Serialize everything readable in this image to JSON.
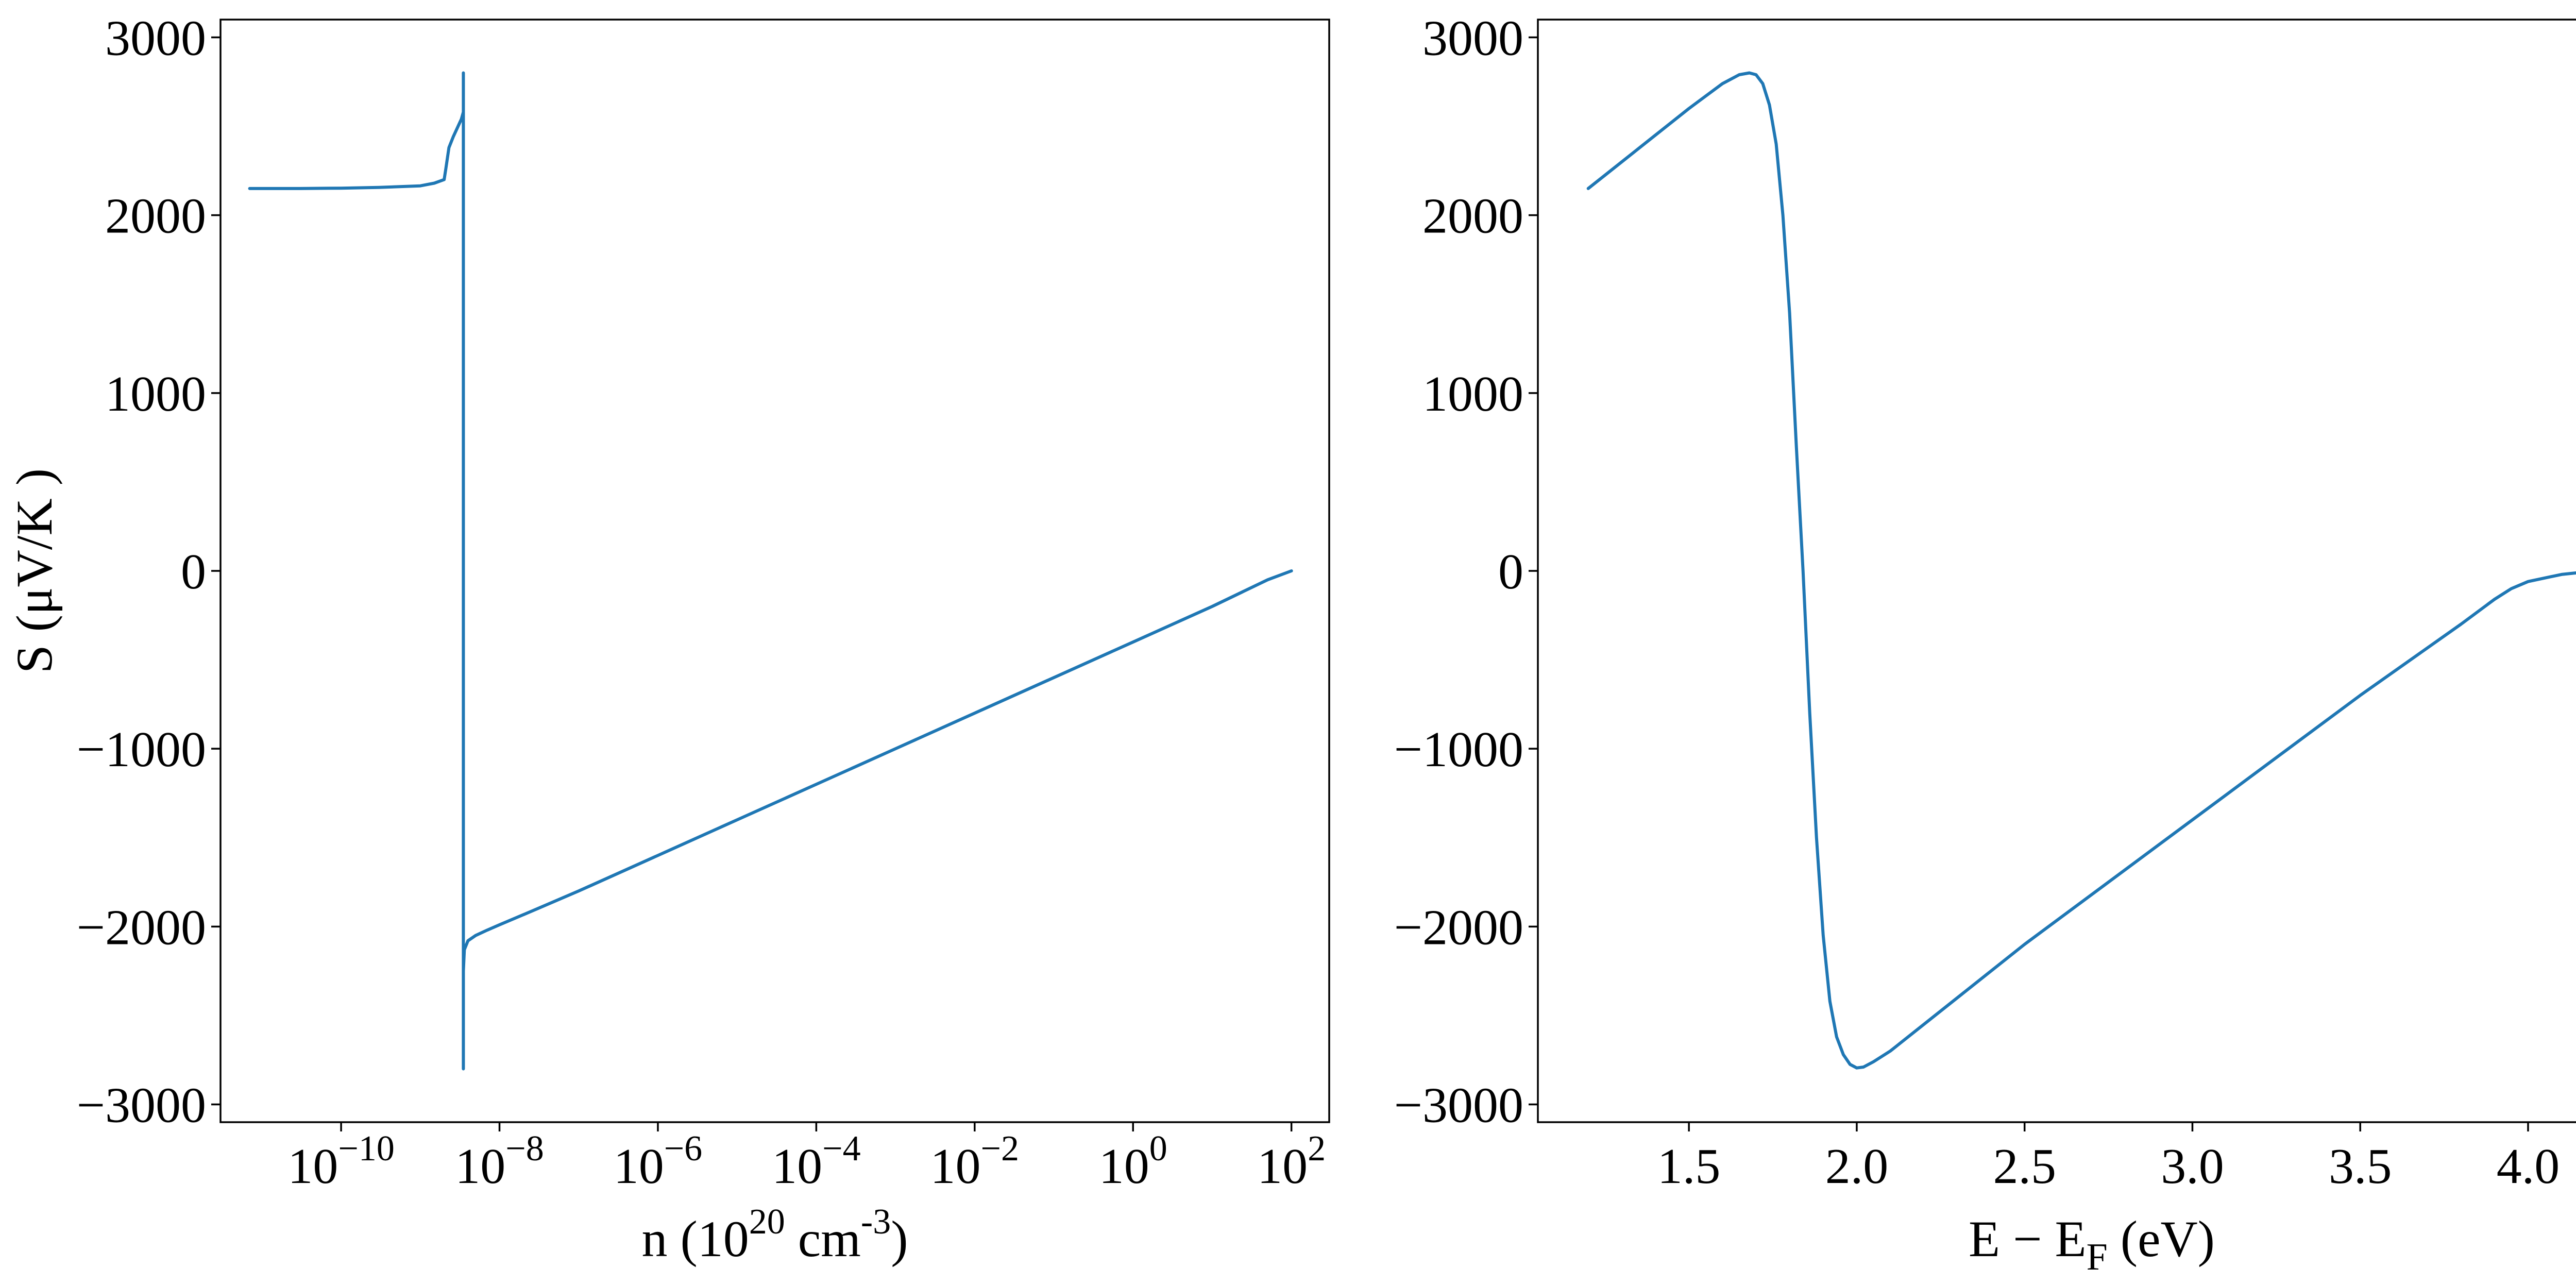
{
  "chart_data": [
    {
      "type": "line",
      "xscale": "log",
      "xlabel_parts": [
        "n (10",
        "20",
        " cm",
        "-3",
        ")"
      ],
      "ylabel": "S (μV/K )",
      "xlim": [
        3e-12,
        300
      ],
      "ylim": [
        -3100,
        3100
      ],
      "xticks": [
        1e-10,
        1e-08,
        1e-06,
        0.0001,
        0.01,
        1,
        100
      ],
      "xtick_labels": [
        {
          "base": "10",
          "exp": "−10"
        },
        {
          "base": "10",
          "exp": "−8"
        },
        {
          "base": "10",
          "exp": "−6"
        },
        {
          "base": "10",
          "exp": "−4"
        },
        {
          "base": "10",
          "exp": "−2"
        },
        {
          "base": "10",
          "exp": "0"
        },
        {
          "base": "10",
          "exp": "2"
        }
      ],
      "yticks": [
        -3000,
        -2000,
        -1000,
        0,
        1000,
        2000,
        3000
      ],
      "ytick_labels": [
        "−3000",
        "−2000",
        "−1000",
        "0",
        "1000",
        "2000",
        "3000"
      ],
      "color": "#1f77b4",
      "x": [
        7e-12,
        1e-11,
        3e-11,
        1e-10,
        3e-10,
        1e-09,
        1.5e-09,
        2e-09,
        2.1e-09,
        2.3e-09,
        2.6e-09,
        3e-09,
        3.3e-09,
        3.5e-09,
        3.5e-09,
        3.5e-09,
        3.5e-09,
        3.5e-09,
        3.6e-09,
        4e-09,
        5e-09,
        7e-09,
        1e-08,
        3e-08,
        1e-07,
        1e-06,
        1e-05,
        0.0001,
        0.001,
        0.01,
        0.1,
        1,
        10,
        50,
        100
      ],
      "y": [
        2150,
        2150,
        2150,
        2152,
        2156,
        2165,
        2180,
        2200,
        2260,
        2380,
        2440,
        2500,
        2540,
        2580,
        2800,
        -2800,
        -2600,
        -2250,
        -2130,
        -2080,
        -2050,
        -2020,
        -1990,
        -1900,
        -1800,
        -1600,
        -1400,
        -1200,
        -1000,
        -800,
        -600,
        -400,
        -200,
        -50,
        0
      ]
    },
    {
      "type": "line",
      "xlabel_parts": [
        "E − E",
        "F",
        " (eV)"
      ],
      "ylabel": "",
      "xlim": [
        1.05,
        4.35
      ],
      "ylim": [
        -3100,
        3100
      ],
      "xticks": [
        1.5,
        2.0,
        2.5,
        3.0,
        3.5,
        4.0
      ],
      "xtick_labels": [
        "1.5",
        "2.0",
        "2.5",
        "3.0",
        "3.5",
        "4.0"
      ],
      "yticks": [
        -3000,
        -2000,
        -1000,
        0,
        1000,
        2000,
        3000
      ],
      "ytick_labels": [
        "−3000",
        "−2000",
        "−1000",
        "0",
        "1000",
        "2000",
        "3000"
      ],
      "color": "#1f77b4",
      "x": [
        1.2,
        1.3,
        1.4,
        1.5,
        1.6,
        1.65,
        1.68,
        1.7,
        1.72,
        1.74,
        1.76,
        1.78,
        1.8,
        1.82,
        1.84,
        1.86,
        1.88,
        1.9,
        1.92,
        1.94,
        1.96,
        1.98,
        2.0,
        2.02,
        2.05,
        2.1,
        2.5,
        3.0,
        3.5,
        3.8,
        3.9,
        3.95,
        4.0,
        4.1,
        4.2
      ],
      "y": [
        2150,
        2300,
        2450,
        2600,
        2740,
        2790,
        2800,
        2790,
        2740,
        2620,
        2400,
        2000,
        1450,
        700,
        0,
        -800,
        -1500,
        -2050,
        -2420,
        -2620,
        -2720,
        -2775,
        -2795,
        -2790,
        -2760,
        -2700,
        -2100,
        -1400,
        -700,
        -300,
        -160,
        -100,
        -60,
        -20,
        0
      ]
    }
  ]
}
